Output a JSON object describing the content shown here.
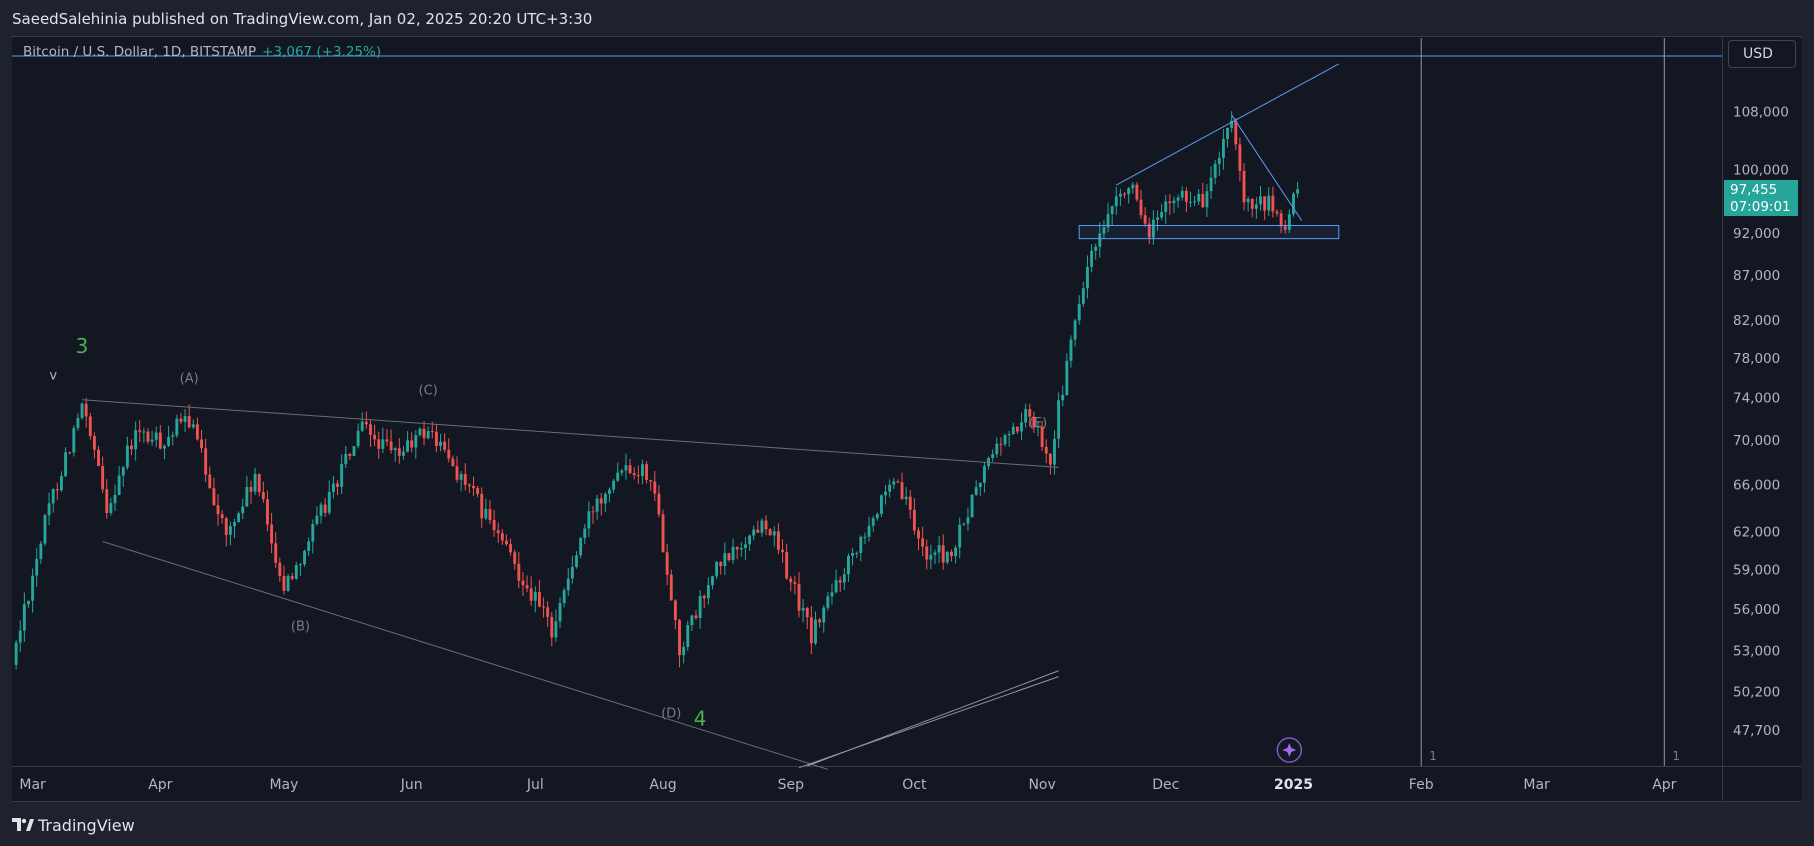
{
  "header": {
    "text": "SaeedSalehinia published on TradingView.com, Jan 02, 2025 20:20 UTC+3:30"
  },
  "legend": {
    "symbol": "Bitcoin / U.S. Dollar, 1D, BITSTAMP",
    "change": "+3,067 (+3.25%)"
  },
  "toolbar": {
    "currency": "USD"
  },
  "footer": {
    "brand": "TradingView"
  },
  "price_tag": {
    "price": "97,455",
    "countdown": "07:09:01"
  },
  "colors": {
    "up": "#26a69a",
    "down": "#ef5350",
    "line": "#5b9cf6",
    "wave": "#4caf50",
    "bg": "#131722"
  },
  "chart_data": {
    "type": "candlestick",
    "x_ticks": [
      "Mar",
      "Apr",
      "May",
      "Jun",
      "Jul",
      "Aug",
      "Sep",
      "Oct",
      "Nov",
      "Dec",
      "2025",
      "Feb",
      "Mar",
      "Apr"
    ],
    "y_ticks": [
      "108,000",
      "100,000",
      "92,000",
      "87,000",
      "82,000",
      "78,000",
      "74,000",
      "70,000",
      "66,000",
      "62,000",
      "59,000",
      "56,000",
      "53,000",
      "50,200",
      "47,700"
    ],
    "y_tick_values": [
      108000,
      100000,
      92000,
      87000,
      82000,
      78000,
      74000,
      70000,
      66000,
      62000,
      59000,
      56000,
      53000,
      50200,
      47700
    ],
    "scale": "log",
    "ylim": [
      45500,
      119000
    ],
    "x_range": [
      "2024-02-25",
      "2025-04-15"
    ],
    "last_price": 97455,
    "waypoints": [
      [
        "2024-02-25",
        52000
      ],
      [
        "2024-03-05",
        64000
      ],
      [
        "2024-03-13",
        73000
      ],
      [
        "2024-03-19",
        64000
      ],
      [
        "2024-03-26",
        70500
      ],
      [
        "2024-04-01",
        69800
      ],
      [
        "2024-04-08",
        72000
      ],
      [
        "2024-04-17",
        61500
      ],
      [
        "2024-04-24",
        66500
      ],
      [
        "2024-05-01",
        57500
      ],
      [
        "2024-05-08",
        62000
      ],
      [
        "2024-05-20",
        71000
      ],
      [
        "2024-05-28",
        68500
      ],
      [
        "2024-06-05",
        71000
      ],
      [
        "2024-06-24",
        60500
      ],
      [
        "2024-07-05",
        54500
      ],
      [
        "2024-07-15",
        64000
      ],
      [
        "2024-07-22",
        68000
      ],
      [
        "2024-07-29",
        67000
      ],
      [
        "2024-08-05",
        53000
      ],
      [
        "2024-08-14",
        59000
      ],
      [
        "2024-08-26",
        63000
      ],
      [
        "2024-09-06",
        54000
      ],
      [
        "2024-09-20",
        63000
      ],
      [
        "2024-09-27",
        66000
      ],
      [
        "2024-10-03",
        60500
      ],
      [
        "2024-10-10",
        60000
      ],
      [
        "2024-10-20",
        69000
      ],
      [
        "2024-10-29",
        72500
      ],
      [
        "2024-11-03",
        68500
      ],
      [
        "2024-11-12",
        88000
      ],
      [
        "2024-11-22",
        98500
      ],
      [
        "2024-11-26",
        92000
      ],
      [
        "2024-12-05",
        97000
      ],
      [
        "2024-12-10",
        96000
      ],
      [
        "2024-12-17",
        106000
      ],
      [
        "2024-12-20",
        95000
      ],
      [
        "2024-12-26",
        95500
      ],
      [
        "2024-12-30",
        92500
      ],
      [
        "2025-01-02",
        97455
      ]
    ],
    "annotations": [
      {
        "text": "3",
        "date": "2024-03-13",
        "price": 78500,
        "kind": "wave"
      },
      {
        "text": "v",
        "date": "2024-03-06",
        "price": 75800,
        "kind": "mark"
      },
      {
        "text": "(A)",
        "date": "2024-04-08",
        "price": 75500,
        "kind": "label"
      },
      {
        "text": "(B)",
        "date": "2024-05-05",
        "price": 54400,
        "kind": "label"
      },
      {
        "text": "(C)",
        "date": "2024-06-05",
        "price": 74300,
        "kind": "label"
      },
      {
        "text": "(D)",
        "date": "2024-08-03",
        "price": 48500,
        "kind": "label"
      },
      {
        "text": "4",
        "date": "2024-08-10",
        "price": 48000,
        "kind": "wave"
      },
      {
        "text": "(E)",
        "date": "2024-10-31",
        "price": 71200,
        "kind": "label"
      }
    ],
    "markers": [
      "1",
      "1"
    ]
  }
}
